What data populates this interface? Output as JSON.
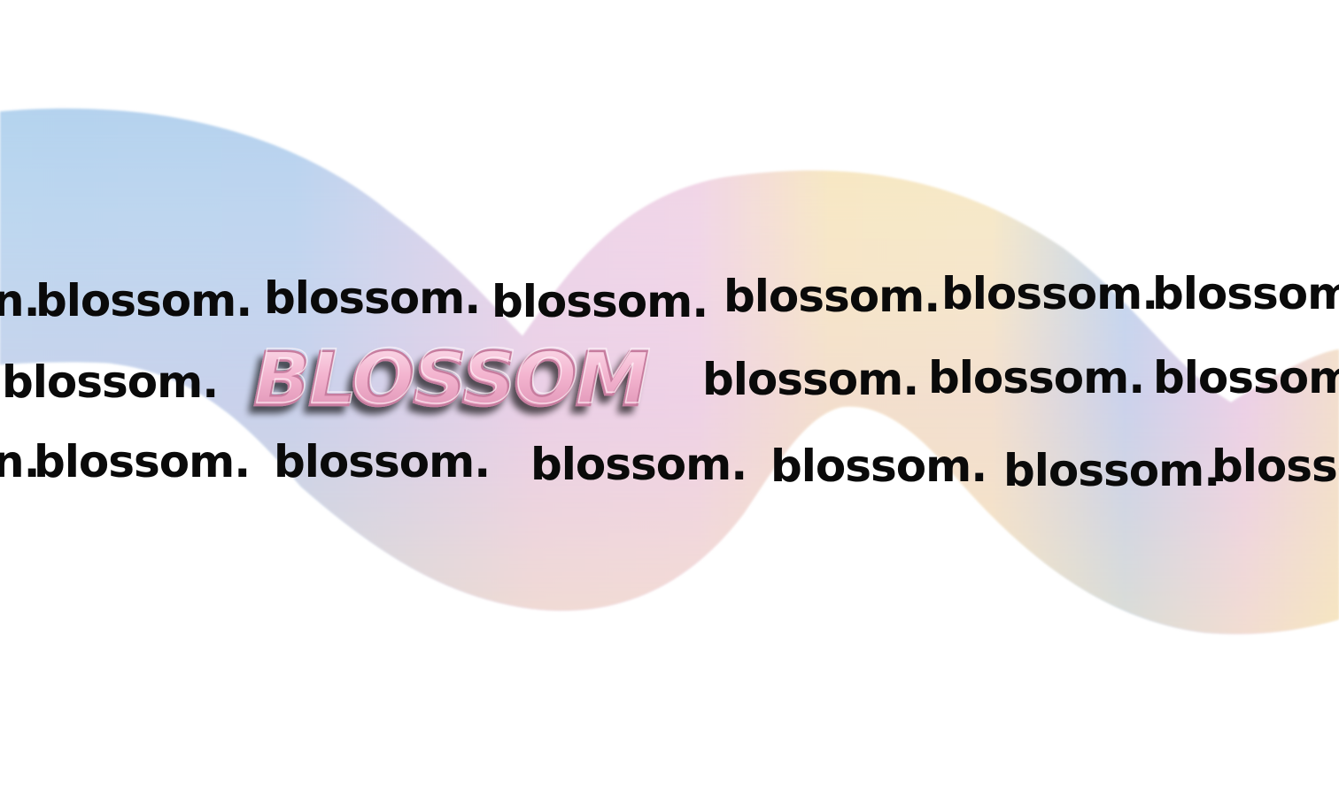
{
  "brand": {
    "word": "blossom.",
    "partial_word": "blosso",
    "clipped_word": "n.",
    "logo_text": "BLOSSOM",
    "text_color": "#0a0a0a"
  },
  "colors": {
    "ribbon_blue": "#b3d4ee",
    "ribbon_pink": "#eccfe6",
    "ribbon_yellow": "#f6e6bf",
    "logo_pink": "#f3b4cf",
    "logo_highlight": "#fde4ef",
    "logo_shadow": "#5a3a44",
    "background": "#ffffff"
  }
}
